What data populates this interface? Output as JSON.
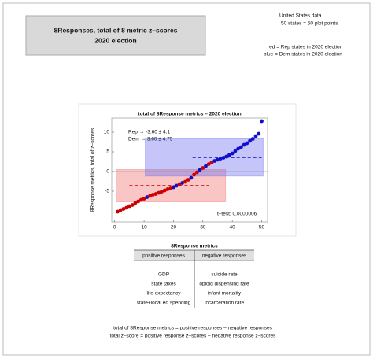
{
  "header": {
    "lines": [
      "8Responses,  total of 8 metric z–scores",
      "2020 election"
    ]
  },
  "notes": {
    "data": [
      "United States data",
      "50 states = 50 plot points"
    ],
    "legend": [
      "red = Rep states in 2020 election",
      "blue = Dem states in 2020 election"
    ]
  },
  "chart_data": {
    "type": "scatter",
    "title": "total of 8Response metrics –  2020 election",
    "y_label": "8Response metrics,  total of z–scores",
    "xlim": [
      -1,
      52
    ],
    "ylim": [
      -12.8,
      13.6
    ],
    "xticks": [
      0,
      10,
      20,
      30,
      40,
      50
    ],
    "yticks": [
      -5,
      0,
      5,
      10
    ],
    "grid": false,
    "series": [
      {
        "x": [
          1,
          2,
          3,
          4,
          5,
          6,
          7,
          8,
          9,
          10,
          11,
          12,
          13,
          14,
          15,
          16,
          17,
          18,
          19,
          20,
          21,
          22,
          23,
          24,
          25,
          26,
          27,
          28,
          29,
          30,
          31,
          32,
          33,
          34,
          35,
          36,
          37,
          38,
          39,
          40,
          41,
          42,
          43,
          44,
          45,
          46,
          47,
          48,
          49,
          50
        ],
        "values": [
          -10.2,
          -9.8,
          -9.5,
          -9.2,
          -8.8,
          -8.5,
          -8,
          -7.6,
          -7.2,
          -6.9,
          -6.5,
          -6.2,
          -5.9,
          -5.7,
          -5.4,
          -5.1,
          -4.8,
          -4.5,
          -4.3,
          -4,
          -3.6,
          -3.2,
          -2.9,
          -2.6,
          -2.1,
          -1.6,
          -0.8,
          -0.2,
          0.4,
          0.9,
          1.4,
          1.9,
          2.3,
          2.7,
          3,
          3.3,
          3.5,
          3.8,
          4.2,
          4.6,
          5.2,
          5.8,
          6.2,
          6.8,
          7.2,
          7.8,
          8.3,
          9,
          9.6,
          12.8
        ],
        "colors": [
          "#cc0000",
          "#cc0000",
          "#cc0000",
          "#cc0000",
          "#cc0000",
          "#cc0000",
          "#cc0000",
          "#cc0000",
          "#cc0000",
          "#cc0000",
          "#1010cc",
          "#cc0000",
          "#cc0000",
          "#cc0000",
          "#cc0000",
          "#cc0000",
          "#cc0000",
          "#cc0000",
          "#cc0000",
          "#1010cc",
          "#1010cc",
          "#cc0000",
          "#1010cc",
          "#cc0000",
          "#cc0000",
          "#1010cc",
          "#cc0000",
          "#cc0000",
          "#1010cc",
          "#cc0000",
          "#1010cc",
          "#cc0000",
          "#cc0000",
          "#1010cc",
          "#1010cc",
          "#1010cc",
          "#1010cc",
          "#1010cc",
          "#1010cc",
          "#1010cc",
          "#1010cc",
          "#1010cc",
          "#1010cc",
          "#1010cc",
          "#1010cc",
          "#1010cc",
          "#1010cc",
          "#1010cc",
          "#1010cc",
          "#1010cc"
        ]
      }
    ],
    "groups": [
      {
        "mean": -3.6,
        "sd": 4.1,
        "color": "#cc0000",
        "fill": "rgba(240,110,110,0.4)",
        "xrange": [
          0.5,
          37.7
        ],
        "mean_xrange": [
          5,
          32
        ]
      },
      {
        "mean": 3.6,
        "sd": 4.75,
        "color": "#1010cc",
        "fill": "rgba(110,110,240,0.4)",
        "xrange": [
          10.4,
          50.5
        ],
        "mean_xrange": [
          26.5,
          50.5
        ]
      }
    ],
    "annotations": [
      "Rep → -3.60 ± 4.1",
      "Dem → 3.60 ± 4.75",
      "t–test: 0.0000006"
    ]
  },
  "table": {
    "title": "8Response metrics",
    "headers": [
      "positive responses",
      "negative responses"
    ],
    "rows": [
      [
        "GDP",
        "suicide rate"
      ],
      [
        "state taxes",
        "opioid dispensing rate"
      ],
      [
        "life expectancy",
        "infant mortality"
      ],
      [
        "state+local ed spending",
        "incarceration rate"
      ]
    ]
  },
  "footer": [
    "total of 8Response metrics  =  positive responses – negative responses",
    "total z–score  =  positive response z–scores  –  negative response z–scores"
  ]
}
